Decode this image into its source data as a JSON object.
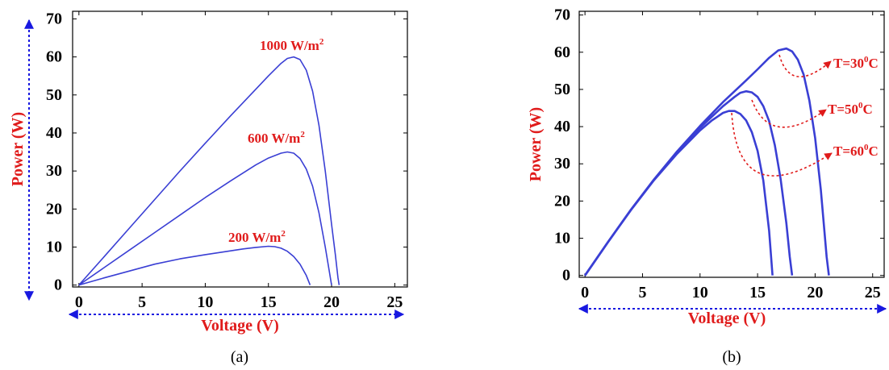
{
  "colors": {
    "curve": "#3a3fd4",
    "arrow": "#1818e0",
    "label": "#e01b1b",
    "axis": "#000000"
  },
  "chart_data": [
    {
      "type": "line",
      "panel_label": "(a)",
      "xlabel": "Voltage (V)",
      "ylabel": "Power (W)",
      "xlim": [
        -0.5,
        26
      ],
      "ylim": [
        -0.5,
        72
      ],
      "xticks": [
        0,
        5,
        10,
        15,
        20,
        25
      ],
      "yticks": [
        0,
        10,
        20,
        30,
        40,
        50,
        60,
        70
      ],
      "grid": false,
      "series": [
        {
          "name": "1000 W/m2",
          "x": [
            0,
            2,
            4,
            6,
            8,
            10,
            12,
            14,
            15,
            16,
            16.5,
            17,
            17.5,
            18,
            18.5,
            19,
            19.5,
            20,
            20.3,
            20.5,
            20.6
          ],
          "y": [
            0,
            7.5,
            15,
            22.5,
            30,
            37.3,
            44.5,
            51.5,
            55,
            58.3,
            59.6,
            60,
            59.3,
            56.5,
            51,
            42,
            30,
            16,
            8,
            2,
            0
          ]
        },
        {
          "name": "600 W/m2",
          "x": [
            0,
            2,
            4,
            6,
            8,
            10,
            12,
            14,
            15,
            16,
            16.5,
            17,
            17.5,
            18,
            18.5,
            19,
            19.5,
            19.8,
            20
          ],
          "y": [
            0,
            4.6,
            9.2,
            13.8,
            18.4,
            23,
            27.4,
            31.6,
            33.4,
            34.7,
            35,
            34.7,
            33.3,
            30.5,
            26,
            19,
            10,
            4,
            0
          ]
        },
        {
          "name": "200 W/m2",
          "x": [
            0,
            2,
            4,
            6,
            8,
            10,
            12,
            13,
            14,
            15,
            15.5,
            16,
            16.5,
            17,
            17.5,
            18,
            18.3
          ],
          "y": [
            0,
            1.9,
            3.7,
            5.5,
            6.9,
            8,
            9,
            9.5,
            9.9,
            10.2,
            10.1,
            9.7,
            8.9,
            7.5,
            5.5,
            2.5,
            0
          ]
        }
      ],
      "annotations": [
        {
          "text": "1000 W/m",
          "sup": "2"
        },
        {
          "text": "600 W/m",
          "sup": "2"
        },
        {
          "text": "200 W/m",
          "sup": "2"
        }
      ]
    },
    {
      "type": "line",
      "panel_label": "(b)",
      "xlabel": "Voltage (V)",
      "ylabel": "Power (W)",
      "xlim": [
        -0.5,
        26
      ],
      "ylim": [
        -0.5,
        71
      ],
      "xticks": [
        0,
        5,
        10,
        15,
        20,
        25
      ],
      "yticks": [
        0,
        10,
        20,
        30,
        40,
        50,
        60,
        70
      ],
      "grid": false,
      "series": [
        {
          "name": "T=30°C",
          "x": [
            0,
            2,
            4,
            6,
            8,
            10,
            12,
            14,
            15,
            16,
            16.8,
            17.5,
            18,
            18.5,
            19,
            19.5,
            20,
            20.5,
            21,
            21.2
          ],
          "y": [
            0,
            9,
            17.7,
            25.8,
            33.3,
            40.2,
            46.6,
            52.4,
            55.4,
            58.5,
            60.5,
            61,
            60.2,
            58,
            54,
            47,
            37,
            23,
            5,
            0
          ]
        },
        {
          "name": "T=50°C",
          "x": [
            0,
            2,
            4,
            6,
            8,
            10,
            12,
            13,
            13.5,
            14,
            14.5,
            15,
            15.5,
            16,
            16.5,
            17,
            17.5,
            17.8,
            18
          ],
          "y": [
            0,
            9,
            17.7,
            25.7,
            33,
            39.7,
            45.5,
            48,
            49.1,
            49.5,
            49.2,
            48,
            45.5,
            41.5,
            35,
            26,
            14,
            5,
            0
          ]
        },
        {
          "name": "T=60°C",
          "x": [
            0,
            2,
            4,
            6,
            8,
            10,
            11,
            12,
            12.5,
            13,
            13.5,
            14,
            14.5,
            15,
            15.5,
            16,
            16.3
          ],
          "y": [
            0,
            9,
            17.6,
            25.6,
            32.7,
            39,
            41.6,
            43.7,
            44.2,
            44.2,
            43.4,
            41.7,
            38.5,
            33.5,
            25.5,
            12,
            0
          ]
        }
      ],
      "annotations": [
        {
          "text": "T=30",
          "sup": "0",
          "suffix": "C"
        },
        {
          "text": "T=50",
          "sup": "0",
          "suffix": "C"
        },
        {
          "text": "T=60",
          "sup": "0",
          "suffix": "C"
        }
      ]
    }
  ]
}
